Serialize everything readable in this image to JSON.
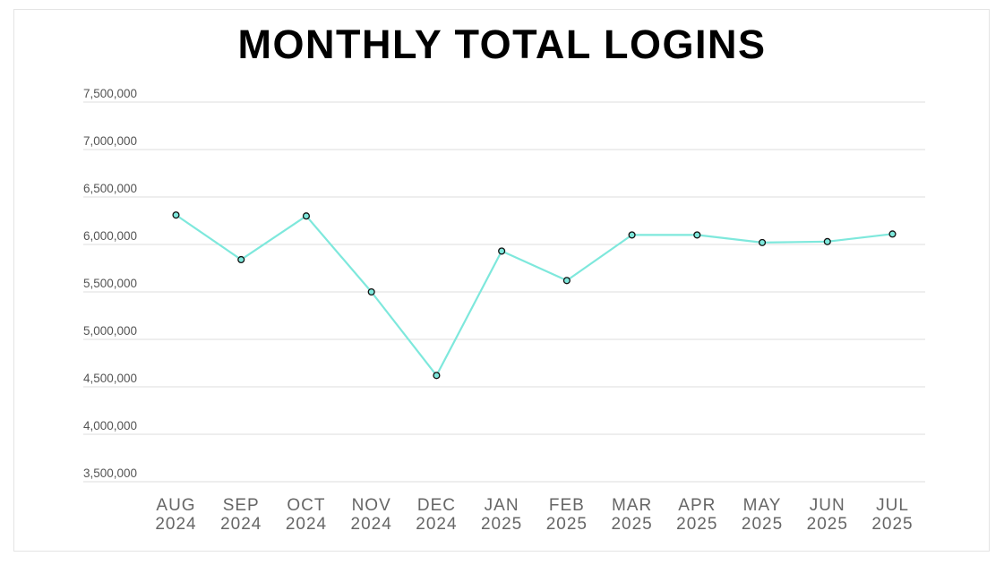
{
  "chart_data": {
    "type": "line",
    "title": "MONTHLY TOTAL LOGINS",
    "xlabel": "",
    "ylabel": "",
    "categories": [
      [
        "AUG",
        "2024"
      ],
      [
        "SEP",
        "2024"
      ],
      [
        "OCT",
        "2024"
      ],
      [
        "NOV",
        "2024"
      ],
      [
        "DEC",
        "2024"
      ],
      [
        "JAN",
        "2025"
      ],
      [
        "FEB",
        "2025"
      ],
      [
        "MAR",
        "2025"
      ],
      [
        "APR",
        "2025"
      ],
      [
        "MAY",
        "2025"
      ],
      [
        "JUN",
        "2025"
      ],
      [
        "JUL",
        "2025"
      ]
    ],
    "series": [
      {
        "values": [
          6310000,
          5840000,
          6300000,
          5500000,
          4620000,
          5930000,
          5620000,
          6100000,
          6100000,
          6020000,
          6030000,
          6110000
        ],
        "color": "#7ee8dc",
        "marker_fill": "#7ee8dc",
        "marker_stroke": "#111111"
      }
    ],
    "yticks": [
      "3,500,000",
      "4,000,000",
      "4,500,000",
      "5,000,000",
      "5,500,000",
      "6,000,000",
      "6,500,000",
      "7,000,000",
      "7,500,000"
    ],
    "ytick_values": [
      3500000,
      4000000,
      4500000,
      5000000,
      5500000,
      6000000,
      6500000,
      7000000,
      7500000
    ],
    "ylim": [
      3500000,
      7500000
    ],
    "grid": true,
    "legend": "none"
  }
}
